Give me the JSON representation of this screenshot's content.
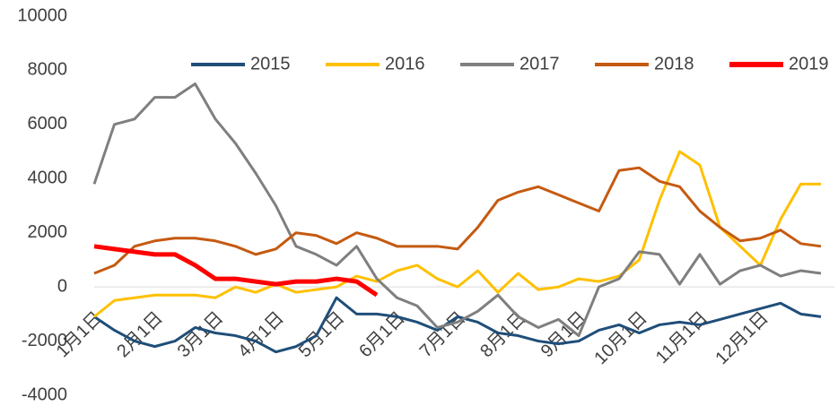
{
  "chart_data": {
    "type": "line",
    "categories": [
      "1月1日",
      null,
      null,
      "2月1日",
      null,
      null,
      "3月1日",
      null,
      null,
      "4月1日",
      null,
      null,
      "5月1日",
      null,
      null,
      "6月1日",
      null,
      null,
      "7月1日",
      null,
      null,
      "8月1日",
      null,
      null,
      "9月1日",
      null,
      null,
      "10月1日",
      null,
      null,
      "11月1日",
      null,
      null,
      "12月1日",
      null,
      null,
      null
    ],
    "series": [
      {
        "name": "2015",
        "color": "#1f4e79",
        "width": 3,
        "values": [
          -1100,
          -1600,
          -2000,
          -2200,
          -2000,
          -1500,
          -1700,
          -1800,
          -2000,
          -2400,
          -2200,
          -1800,
          -400,
          -1000,
          -1000,
          -1100,
          -1300,
          -1600,
          -1100,
          -1300,
          -1700,
          -1800,
          -2000,
          -2100,
          -2000,
          -1600,
          -1400,
          -1700,
          -1400,
          -1300,
          -1400,
          -1200,
          -1000,
          -800,
          -600,
          -1000,
          -1100
        ]
      },
      {
        "name": "2016",
        "color": "#ffc000",
        "width": 3,
        "values": [
          -1100,
          -500,
          -400,
          -300,
          -300,
          -300,
          -400,
          0,
          -200,
          100,
          -200,
          -100,
          0,
          400,
          200,
          600,
          800,
          300,
          0,
          600,
          -200,
          500,
          -100,
          0,
          300,
          200,
          400,
          1000,
          3200,
          5000,
          4500,
          2200,
          1500,
          800,
          2500,
          3800,
          3800
        ]
      },
      {
        "name": "2017",
        "color": "#7f7f7f",
        "width": 3,
        "values": [
          3800,
          6000,
          6200,
          7000,
          7000,
          7500,
          6200,
          5300,
          4200,
          3000,
          1500,
          1200,
          800,
          1500,
          300,
          -400,
          -700,
          -1500,
          -1300,
          -900,
          -300,
          -1100,
          -1500,
          -1200,
          -1800,
          0,
          300,
          1300,
          1200,
          100,
          1200,
          100,
          600,
          800,
          400,
          600,
          500
        ]
      },
      {
        "name": "2018",
        "color": "#c55a11",
        "width": 3,
        "values": [
          500,
          800,
          1500,
          1700,
          1800,
          1800,
          1700,
          1500,
          1200,
          1400,
          2000,
          1900,
          1600,
          2000,
          1800,
          1500,
          1500,
          1500,
          1400,
          2200,
          3200,
          3500,
          3700,
          3400,
          3100,
          2800,
          4300,
          4400,
          3900,
          3700,
          2800,
          2200,
          1700,
          1800,
          2100,
          1600,
          1500
        ]
      },
      {
        "name": "2019",
        "color": "#ff0000",
        "width": 5,
        "values": [
          1500,
          1400,
          1300,
          1200,
          1200,
          800,
          300,
          300,
          200,
          100,
          200,
          200,
          300,
          200,
          -300,
          null,
          null,
          null,
          null,
          null,
          null,
          null,
          null,
          null,
          null,
          null,
          null,
          null,
          null,
          null,
          null,
          null,
          null,
          null,
          null,
          null,
          null
        ]
      }
    ],
    "ylim": [
      -4000,
      10000
    ],
    "yticks": [
      -4000,
      -2000,
      0,
      2000,
      4000,
      6000,
      8000,
      10000
    ],
    "grid": false,
    "legend": "top"
  }
}
